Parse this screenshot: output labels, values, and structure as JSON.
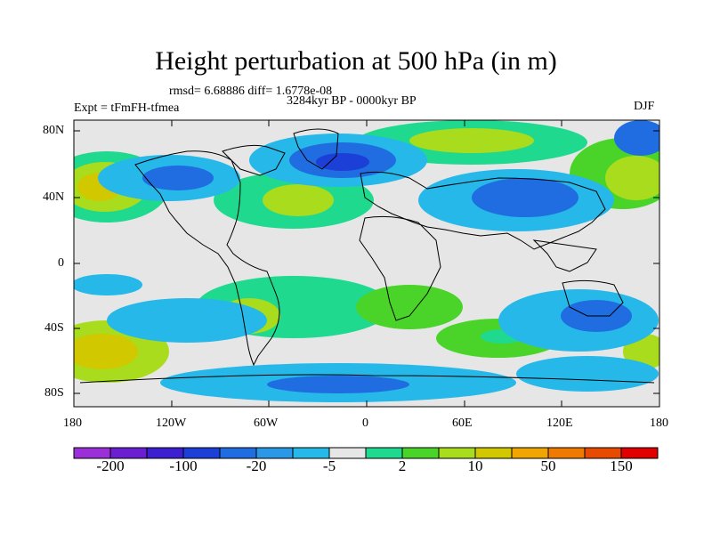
{
  "title": "Height perturbation at 500 hPa (in m)",
  "stats": "rmsd= 6.68886 diff= 1.6778e-08",
  "period": "3284kyr BP - 0000kyr BP",
  "experiment": "Expt = tFmFH-tfmea",
  "season": "DJF",
  "lat_ticks": [
    "80N",
    "40N",
    "0",
    "40S",
    "80S"
  ],
  "lon_ticks": [
    "180",
    "120W",
    "60W",
    "0",
    "60E",
    "120E",
    "180"
  ],
  "colorbar": {
    "colors": [
      "#9b30d8",
      "#6a1fd0",
      "#3b1fd0",
      "#1c3fd8",
      "#1f6de0",
      "#2a98e6",
      "#25b8e8",
      "#e6e6e6",
      "#1fd98f",
      "#4ad42a",
      "#a8dc1c",
      "#d2c800",
      "#f0a500",
      "#f07a00",
      "#e84a00",
      "#e00000"
    ],
    "labels": [
      "-200",
      "-100",
      "-20",
      "-5",
      "2",
      "10",
      "50",
      "150"
    ]
  },
  "colors": {
    "strong_neg": "#1c3fd8",
    "mid_neg": "#1f6de0",
    "weak_neg": "#25b8e8",
    "neutral": "#e6e6e6",
    "weak_pos": "#1fd98f",
    "mid_pos": "#4ad42a",
    "pos_yellow": "#a8dc1c",
    "pos_orange": "#d2c800"
  }
}
